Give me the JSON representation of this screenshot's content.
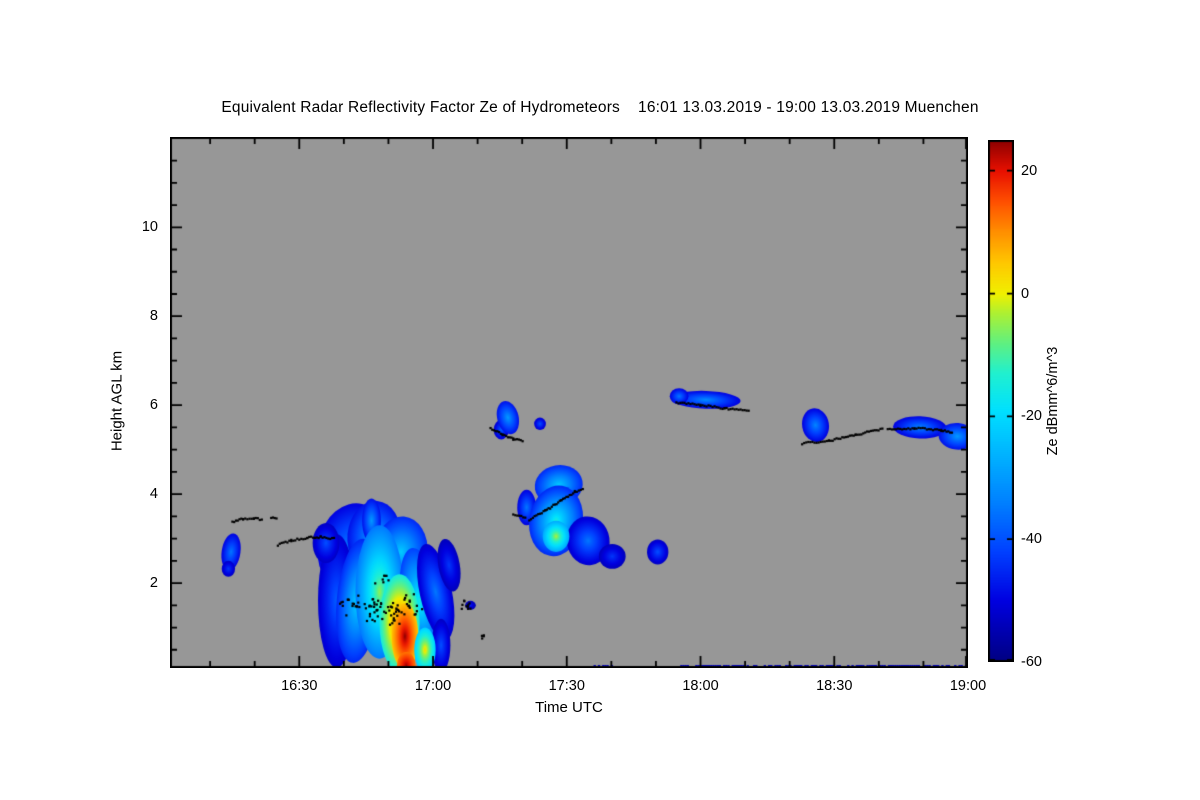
{
  "chart_data": {
    "type": "heatmap",
    "title": "Equivalent Radar Reflectivity Factor Ze of Hydrometeors    16:01 13.03.2019 - 19:00 13.03.2019 Muenchen",
    "xlabel": "Time UTC",
    "ylabel": "Height AGL km",
    "background_color": "#979797",
    "x_axis": {
      "start_hour": 16.0167,
      "end_hour": 19.0,
      "ticks": [
        {
          "hour": 16.5,
          "label": "16:30"
        },
        {
          "hour": 17.0,
          "label": "17:00"
        },
        {
          "hour": 17.5,
          "label": "17:30"
        },
        {
          "hour": 18.0,
          "label": "18:00"
        },
        {
          "hour": 18.5,
          "label": "18:30"
        },
        {
          "hour": 19.0,
          "label": "19:00"
        }
      ]
    },
    "y_axis": {
      "min_km": 0.09,
      "max_km": 12.03,
      "ticks": [
        {
          "km": 2,
          "label": "2"
        },
        {
          "km": 4,
          "label": "4"
        },
        {
          "km": 6,
          "label": "6"
        },
        {
          "km": 8,
          "label": "8"
        },
        {
          "km": 10,
          "label": "10"
        }
      ]
    },
    "colorbar": {
      "label": "Ze dBmm^6/m^3",
      "min": -60,
      "max": 25,
      "ticks": [
        {
          "value": 20,
          "label": "20"
        },
        {
          "value": 0,
          "label": "0"
        },
        {
          "value": -20,
          "label": "-20"
        },
        {
          "value": -40,
          "label": "-40"
        },
        {
          "value": -60,
          "label": "-60"
        }
      ]
    },
    "colormap": [
      [
        -60,
        "#000080"
      ],
      [
        -50,
        "#0000e0"
      ],
      [
        -42,
        "#0040ff"
      ],
      [
        -34,
        "#0080ff"
      ],
      [
        -26,
        "#00b4ff"
      ],
      [
        -19,
        "#00e0ff"
      ],
      [
        -13,
        "#20f0d0"
      ],
      [
        -8,
        "#60f080"
      ],
      [
        -3,
        "#b0f030"
      ],
      [
        0,
        "#f0f000"
      ],
      [
        5,
        "#ffc800"
      ],
      [
        10,
        "#ff9000"
      ],
      [
        15,
        "#ff5000"
      ],
      [
        20,
        "#e81000"
      ],
      [
        25,
        "#8c0000"
      ]
    ],
    "clouds": [
      {
        "t": 16.245,
        "h": 2.7,
        "rt": 0.035,
        "rh": 0.42,
        "core": -35,
        "edge": -50,
        "rot": 8
      },
      {
        "t": 16.235,
        "h": 2.32,
        "rt": 0.025,
        "rh": 0.18,
        "core": -43,
        "edge": -53,
        "rot": 0
      },
      {
        "t": 16.7,
        "h": 2.8,
        "rt": 0.13,
        "rh": 1.0,
        "core": -32,
        "edge": -50,
        "rot": 12
      },
      {
        "t": 16.78,
        "h": 3.05,
        "rt": 0.1,
        "rh": 0.8,
        "core": -27,
        "edge": -48,
        "rot": 5
      },
      {
        "t": 16.77,
        "h": 3.4,
        "rt": 0.035,
        "rh": 0.5,
        "core": -30,
        "edge": -48,
        "rot": 0
      },
      {
        "t": 16.64,
        "h": 1.6,
        "rt": 0.07,
        "rh": 1.5,
        "core": -38,
        "edge": -52,
        "rot": 0
      },
      {
        "t": 16.72,
        "h": 1.6,
        "rt": 0.08,
        "rh": 1.4,
        "core": -20,
        "edge": -45,
        "rot": 5
      },
      {
        "t": 16.6,
        "h": 2.9,
        "rt": 0.05,
        "rh": 0.45,
        "core": -40,
        "edge": -53,
        "rot": 0
      },
      {
        "t": 16.88,
        "h": 2.7,
        "rt": 0.1,
        "rh": 0.8,
        "core": -22,
        "edge": -45,
        "rot": 5
      },
      {
        "t": 16.8,
        "h": 1.8,
        "rt": 0.09,
        "rh": 1.5,
        "core": -5,
        "edge": -35,
        "rot": 0
      },
      {
        "t": 16.95,
        "h": 1.6,
        "rt": 0.07,
        "rh": 1.2,
        "core": -15,
        "edge": -42,
        "rot": -8
      },
      {
        "t": 17.01,
        "h": 1.8,
        "rt": 0.06,
        "rh": 1.1,
        "core": -35,
        "edge": -52,
        "rot": -12
      },
      {
        "t": 17.03,
        "h": 0.6,
        "rt": 0.035,
        "rh": 0.6,
        "core": -40,
        "edge": -53,
        "rot": 0
      },
      {
        "t": 17.06,
        "h": 2.4,
        "rt": 0.04,
        "rh": 0.6,
        "core": -43,
        "edge": -54,
        "rot": -10
      },
      {
        "t": 16.875,
        "h": 1.1,
        "rt": 0.075,
        "rh": 1.1,
        "core": 18,
        "edge": -15,
        "rot": 0
      },
      {
        "t": 16.895,
        "h": 0.8,
        "rt": 0.05,
        "rh": 0.75,
        "core": 25,
        "edge": 5,
        "rot": 0
      },
      {
        "t": 16.9,
        "h": 0.15,
        "rt": 0.035,
        "rh": 0.3,
        "core": 24,
        "edge": 12,
        "rot": 0
      },
      {
        "t": 16.97,
        "h": 0.5,
        "rt": 0.04,
        "rh": 0.5,
        "core": 3,
        "edge": -22,
        "rot": 0
      },
      {
        "t": 17.14,
        "h": 1.5,
        "rt": 0.02,
        "rh": 0.1,
        "core": -46,
        "edge": -55,
        "rot": 0
      },
      {
        "t": 17.255,
        "h": 5.45,
        "rt": 0.028,
        "rh": 0.22,
        "core": -38,
        "edge": -52,
        "rot": 0
      },
      {
        "t": 17.28,
        "h": 5.72,
        "rt": 0.04,
        "rh": 0.38,
        "core": -30,
        "edge": -48,
        "rot": -14
      },
      {
        "t": 17.4,
        "h": 5.58,
        "rt": 0.022,
        "rh": 0.14,
        "core": -40,
        "edge": -52,
        "rot": 0
      },
      {
        "t": 17.35,
        "h": 3.7,
        "rt": 0.035,
        "rh": 0.4,
        "core": -35,
        "edge": -50,
        "rot": 0
      },
      {
        "t": 17.47,
        "h": 4.2,
        "rt": 0.09,
        "rh": 0.45,
        "core": -22,
        "edge": -45,
        "rot": -10
      },
      {
        "t": 17.46,
        "h": 3.4,
        "rt": 0.1,
        "rh": 0.8,
        "core": -14,
        "edge": -45,
        "rot": 10
      },
      {
        "t": 17.58,
        "h": 2.95,
        "rt": 0.08,
        "rh": 0.55,
        "core": -35,
        "edge": -52,
        "rot": -8
      },
      {
        "t": 17.67,
        "h": 2.6,
        "rt": 0.05,
        "rh": 0.28,
        "core": -43,
        "edge": -54,
        "rot": 0
      },
      {
        "t": 17.46,
        "h": 3.05,
        "rt": 0.05,
        "rh": 0.35,
        "core": -3,
        "edge": -28,
        "rot": 0
      },
      {
        "t": 17.84,
        "h": 2.7,
        "rt": 0.04,
        "rh": 0.28,
        "core": -40,
        "edge": -53,
        "rot": 0
      },
      {
        "t": 18.02,
        "h": 6.12,
        "rt": 0.13,
        "rh": 0.2,
        "core": -32,
        "edge": -50,
        "rot": 2
      },
      {
        "t": 17.92,
        "h": 6.2,
        "rt": 0.035,
        "rh": 0.18,
        "core": -35,
        "edge": -50,
        "rot": 0
      },
      {
        "t": 18.43,
        "h": 5.55,
        "rt": 0.05,
        "rh": 0.38,
        "core": -33,
        "edge": -50,
        "rot": -10
      },
      {
        "t": 18.82,
        "h": 5.5,
        "rt": 0.1,
        "rh": 0.25,
        "core": -33,
        "edge": -50,
        "rot": 2
      },
      {
        "t": 18.96,
        "h": 5.3,
        "rt": 0.07,
        "rh": 0.3,
        "core": -30,
        "edge": -48,
        "rot": 5
      }
    ],
    "cloud_base_tracks": [
      [
        [
          16.25,
          3.38
        ],
        [
          16.29,
          3.45
        ],
        [
          16.33,
          3.46
        ],
        [
          16.36,
          3.42
        ]
      ],
      [
        [
          16.395,
          3.46
        ],
        [
          16.415,
          3.46
        ]
      ],
      [
        [
          16.42,
          2.86
        ],
        [
          16.47,
          2.96
        ],
        [
          16.53,
          3.02
        ],
        [
          16.58,
          3.03
        ],
        [
          16.63,
          3.0
        ]
      ],
      [
        [
          17.215,
          5.48
        ],
        [
          17.26,
          5.34
        ],
        [
          17.3,
          5.24
        ],
        [
          17.335,
          5.2
        ]
      ],
      [
        [
          17.3,
          3.55
        ],
        [
          17.345,
          3.47
        ]
      ],
      [
        [
          17.36,
          3.42
        ],
        [
          17.42,
          3.62
        ],
        [
          17.48,
          3.86
        ],
        [
          17.53,
          4.05
        ],
        [
          17.56,
          4.12
        ]
      ],
      [
        [
          17.91,
          6.06
        ],
        [
          18.0,
          6.0
        ],
        [
          18.09,
          5.93
        ],
        [
          18.18,
          5.86
        ]
      ],
      [
        [
          18.38,
          5.14
        ],
        [
          18.48,
          5.2
        ],
        [
          18.58,
          5.33
        ],
        [
          18.68,
          5.47
        ]
      ],
      [
        [
          18.7,
          5.45
        ],
        [
          18.8,
          5.48
        ],
        [
          18.9,
          5.44
        ],
        [
          18.94,
          5.38
        ]
      ]
    ],
    "dot_clusters": [
      {
        "t": 16.69,
        "h": 1.5,
        "rt": 0.045,
        "rh": 0.25,
        "n": 16
      },
      {
        "t": 16.77,
        "h": 1.4,
        "rt": 0.05,
        "rh": 0.3,
        "n": 24
      },
      {
        "t": 16.85,
        "h": 1.3,
        "rt": 0.05,
        "rh": 0.33,
        "n": 28
      },
      {
        "t": 16.92,
        "h": 1.5,
        "rt": 0.04,
        "rh": 0.28,
        "n": 16
      },
      {
        "t": 16.81,
        "h": 2.05,
        "rt": 0.03,
        "rh": 0.18,
        "n": 7
      },
      {
        "t": 17.13,
        "h": 1.5,
        "rt": 0.03,
        "rh": 0.15,
        "n": 10
      },
      {
        "t": 17.19,
        "h": 0.8,
        "rt": 0.012,
        "rh": 0.08,
        "n": 4
      }
    ],
    "ground_lines": [
      {
        "t0": 17.6,
        "t1": 17.67,
        "h": 0.13
      },
      {
        "t0": 17.9,
        "t1": 19.0,
        "h": 0.13
      }
    ],
    "ground_line_color": "#0000b8",
    "marker_color": "#000000"
  }
}
